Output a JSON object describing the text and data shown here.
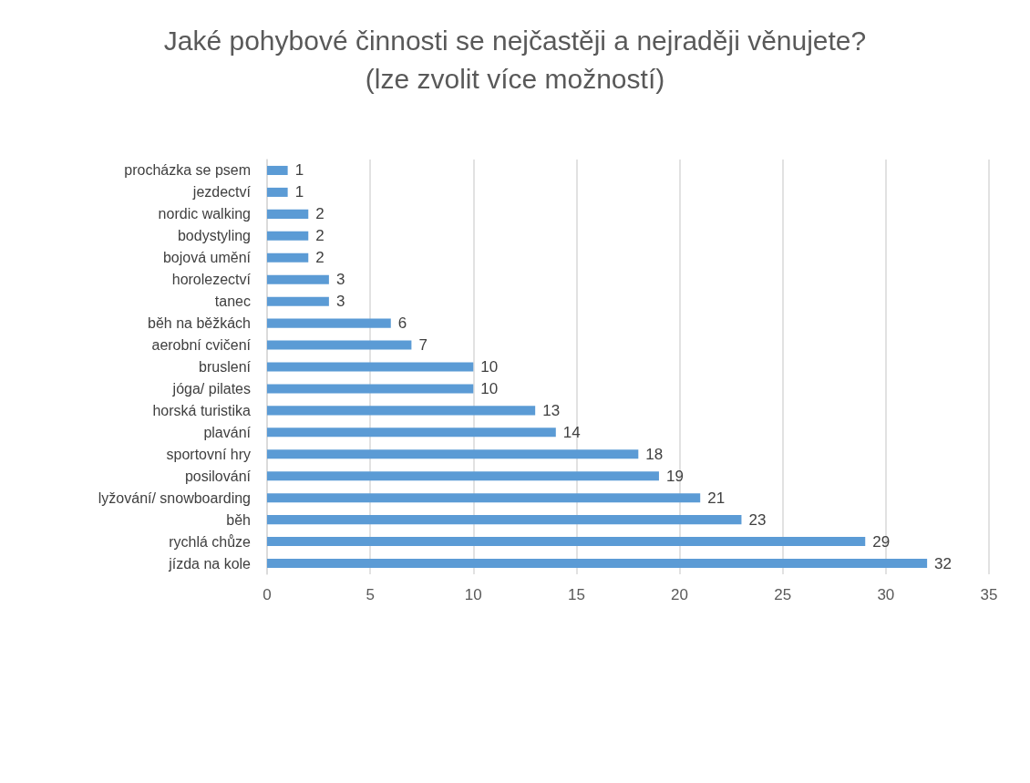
{
  "chart_data": {
    "type": "bar",
    "orientation": "horizontal",
    "title": "Jaké pohybové činnosti se nejčastěji a nejraději věnujete?\n(lze zvolit více možností)",
    "categories": [
      "procházka se psem",
      "jezdectví",
      "nordic walking",
      "bodystyling",
      "bojová umění",
      "horolezectví",
      "tanec",
      "běh na běžkách",
      "aerobní cvičení",
      "bruslení",
      "jóga/ pilates",
      "horská turistika",
      "plavání",
      "sportovní hry",
      "posilování",
      "lyžování/ snowboarding",
      "běh",
      "rychlá chůze",
      "jízda na kole"
    ],
    "values": [
      1,
      1,
      2,
      2,
      2,
      3,
      3,
      6,
      7,
      10,
      10,
      13,
      14,
      18,
      19,
      21,
      23,
      29,
      32
    ],
    "color": "#5b9bd5",
    "xlim": [
      0,
      35
    ],
    "xticks": [
      0,
      5,
      10,
      15,
      20,
      25,
      30,
      35
    ],
    "grid": "x",
    "data_labels": true
  }
}
